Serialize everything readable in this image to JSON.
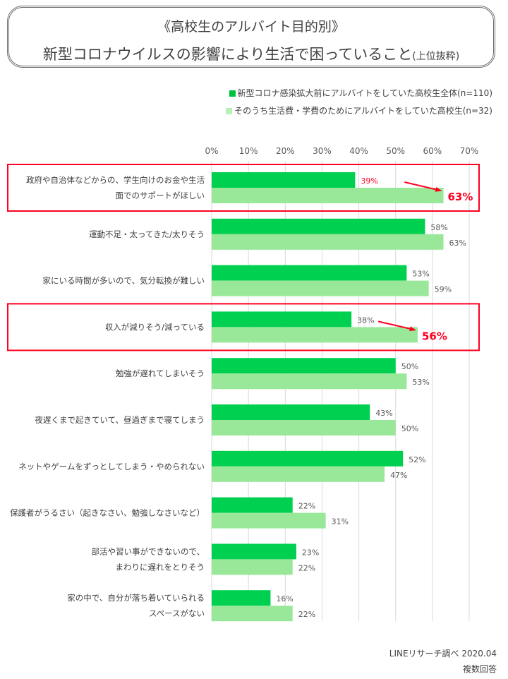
{
  "header": {
    "title_line1": "《高校生のアルバイト目的別》",
    "title_line2": "新型コロナウイルスの影響により生活で困っていること",
    "title_suffix": "(上位抜粋)"
  },
  "colors": {
    "series1": "#00d050",
    "series2": "#99e899",
    "highlight": "#ff0022"
  },
  "chart_data": {
    "type": "bar",
    "orientation": "horizontal",
    "xlim": [
      0,
      70
    ],
    "x_ticks": [
      "0%",
      "10%",
      "20%",
      "30%",
      "40%",
      "50%",
      "60%",
      "70%"
    ],
    "grid": "vertical",
    "legend_placement": "top-right",
    "categories": [
      "政府や自治体などからの、学生向けのお金や生活\n面でのサポートがほしい",
      "運動不足・太ってきた/太りそう",
      "家にいる時間が多いので、気分転換が難しい",
      "収入が減りそう/減っている",
      "勉強が遅れてしまいそう",
      "夜遅くまで起きていて、昼過ぎまで寝てしまう",
      "ネットやゲームをずっとしてしまう・やめられない",
      "保護者がうるさい（起きなさい、勉強しなさいなど）",
      "部活や習い事ができないので、\nまわりに遅れをとりそう",
      "家の中で、自分が落ち着いていられる\nスペースがない"
    ],
    "series": [
      {
        "name": "新型コロナ感染拡大前にアルバイトをしていた高校生全体(n=110)",
        "values": [
          39,
          58,
          53,
          38,
          50,
          43,
          52,
          22,
          23,
          16
        ]
      },
      {
        "name": "そのうち生活費・学費のためにアルバイトをしていた高校生(n=32)",
        "values": [
          63,
          63,
          59,
          56,
          53,
          50,
          47,
          31,
          22,
          22
        ]
      }
    ],
    "highlighted_categories": [
      0,
      3
    ]
  },
  "footer": {
    "source": "LINEリサーチ調べ 2020.04",
    "note": "複数回答"
  }
}
